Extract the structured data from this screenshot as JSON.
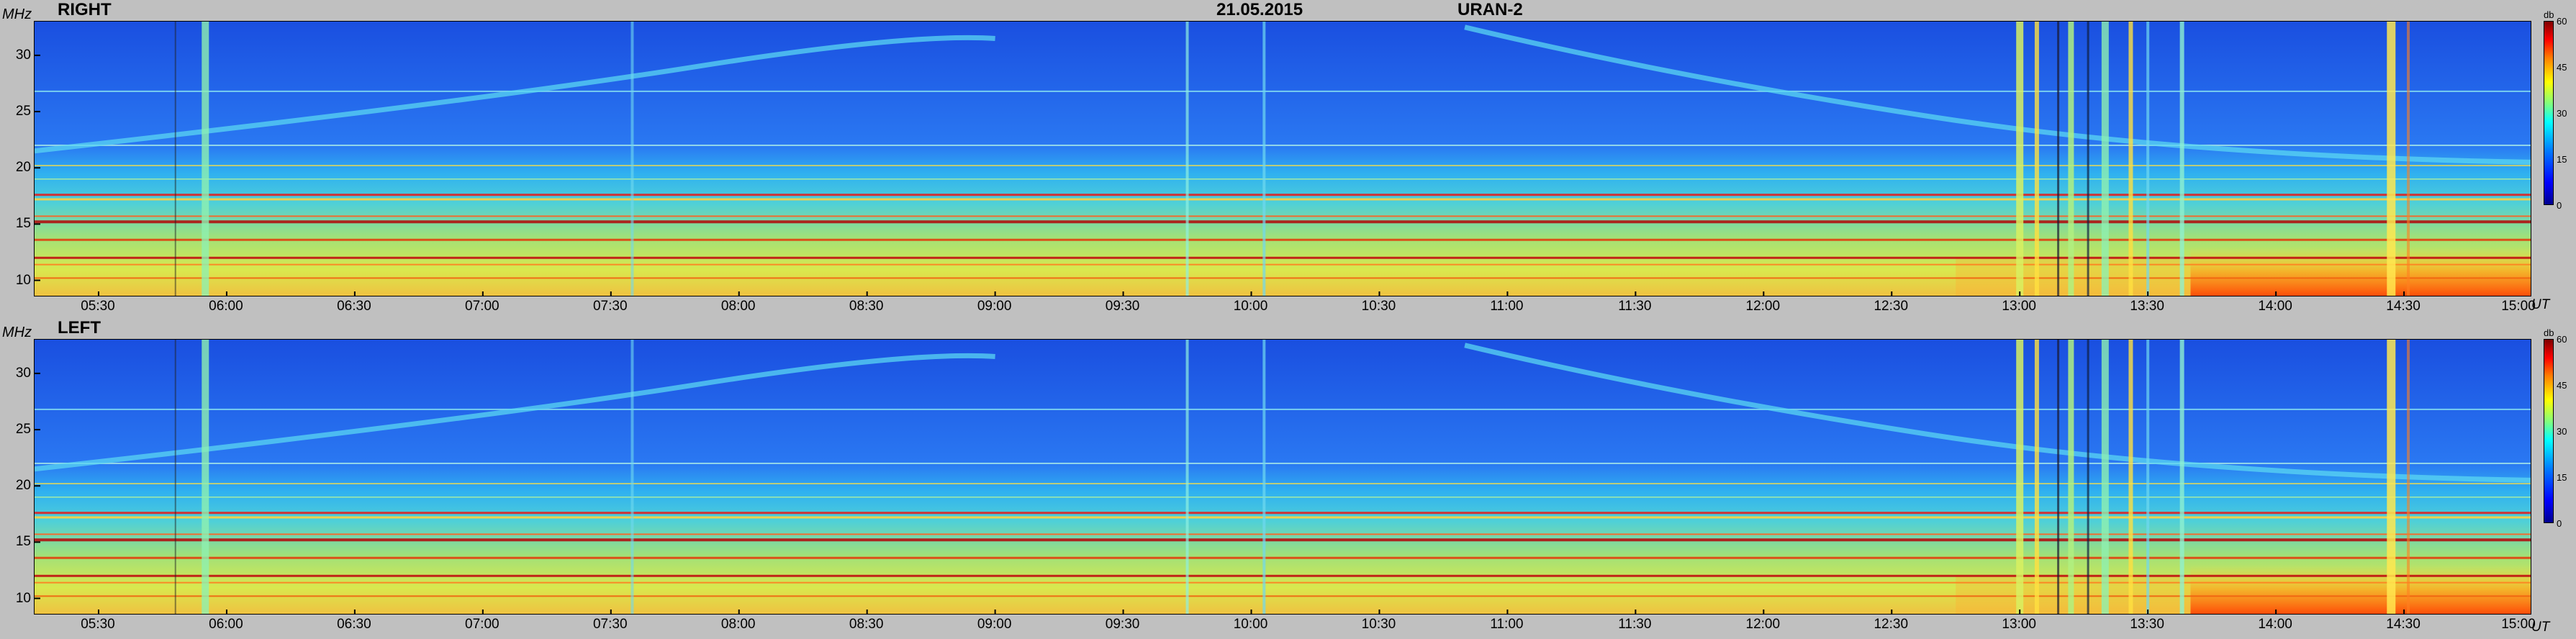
{
  "header": {
    "date": "21.05.2015",
    "station": "URAN-2"
  },
  "chart_data": [
    {
      "type": "heatmap",
      "title": "RIGHT",
      "ylabel": "MHz",
      "xlabel": "UT",
      "y_ticks": [
        "10",
        "15",
        "20",
        "25",
        "30"
      ],
      "x_ticks": [
        "05:30",
        "06:00",
        "06:30",
        "07:00",
        "07:30",
        "08:00",
        "08:30",
        "09:00",
        "09:30",
        "10:00",
        "10:30",
        "11:00",
        "11:30",
        "12:00",
        "12:30",
        "13:00",
        "13:30",
        "14:00",
        "14:30",
        "15:00"
      ],
      "x_range": [
        "05:15",
        "15:00"
      ],
      "y_range": [
        8.5,
        33
      ],
      "colorbar": {
        "unit": "db",
        "ticks": [
          "0",
          "15",
          "30",
          "45",
          "60"
        ],
        "range": [
          0,
          60
        ]
      },
      "colormap": [
        "#00008f",
        "#0000ff",
        "#007fff",
        "#00ffff",
        "#7fff7f",
        "#ffff00",
        "#ff7f00",
        "#ff0000",
        "#7f0000"
      ]
    },
    {
      "type": "heatmap",
      "title": "LEFT",
      "ylabel": "MHz",
      "xlabel": "UT",
      "y_ticks": [
        "10",
        "15",
        "20",
        "25",
        "30"
      ],
      "x_ticks": [
        "05:30",
        "06:00",
        "06:30",
        "07:00",
        "07:30",
        "08:00",
        "08:30",
        "09:00",
        "09:30",
        "10:00",
        "10:30",
        "11:00",
        "11:30",
        "12:00",
        "12:30",
        "13:00",
        "13:30",
        "14:00",
        "14:30",
        "15:00"
      ],
      "x_range": [
        "05:15",
        "15:00"
      ],
      "y_range": [
        8.5,
        33
      ],
      "colorbar": {
        "unit": "db",
        "ticks": [
          "0",
          "15",
          "30",
          "45",
          "60"
        ],
        "range": [
          0,
          60
        ]
      },
      "colormap": [
        "#00008f",
        "#0000ff",
        "#007fff",
        "#00ffff",
        "#7fff7f",
        "#ffff00",
        "#ff7f00",
        "#ff0000",
        "#7f0000"
      ]
    }
  ]
}
